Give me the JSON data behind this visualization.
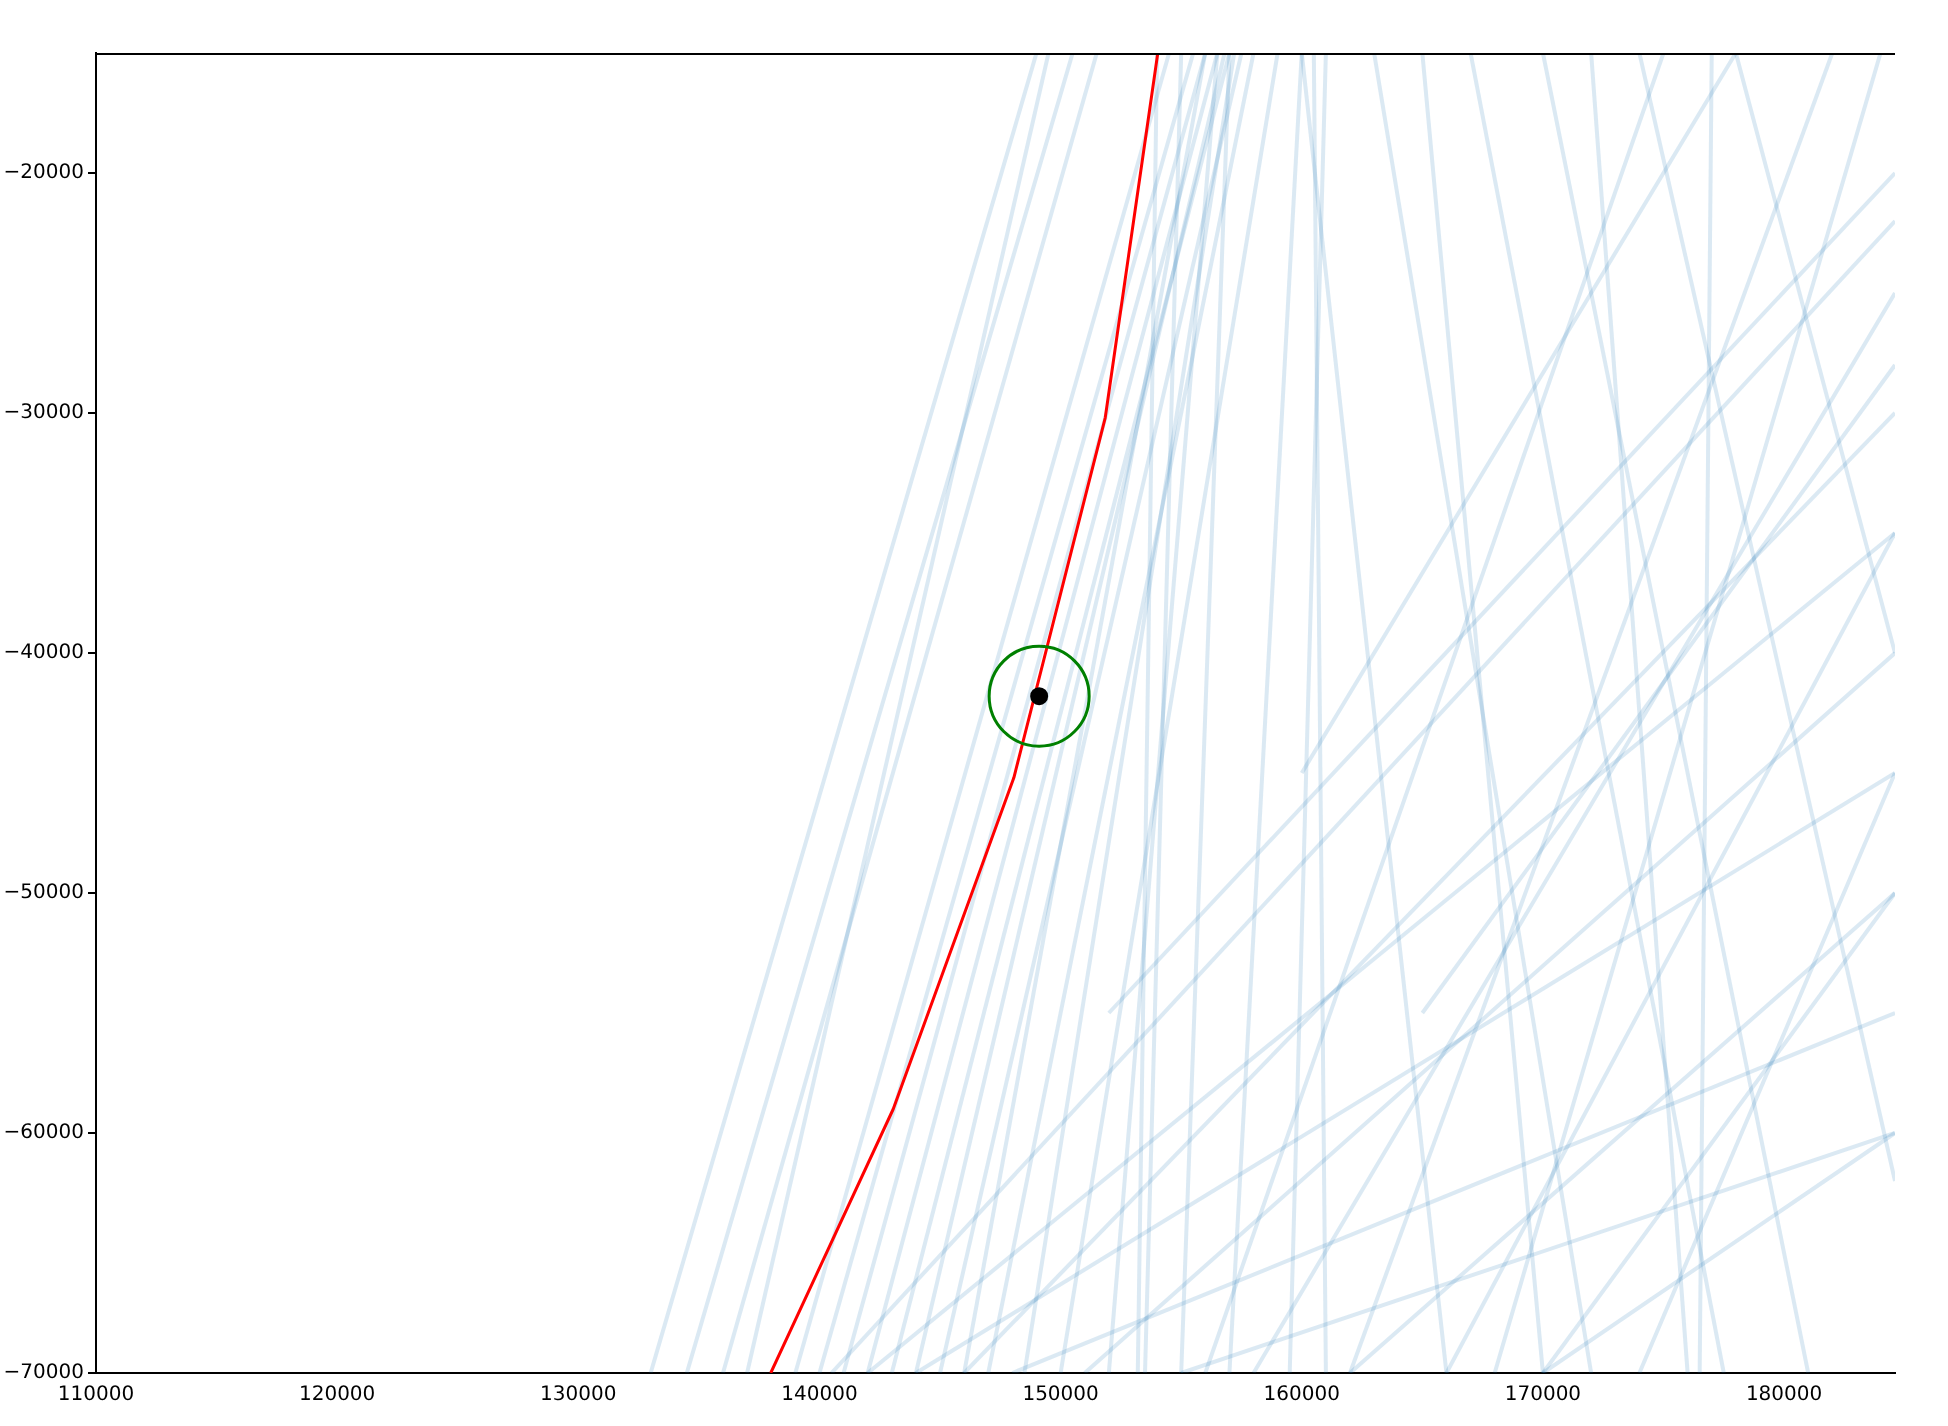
{
  "chart_data": {
    "type": "line",
    "xlim": [
      110000,
      184600
    ],
    "ylim": [
      -70000,
      -15000
    ],
    "xticks": [
      110000,
      120000,
      130000,
      140000,
      150000,
      160000,
      170000,
      180000
    ],
    "yticks": [
      {
        "value": -70000,
        "label": "−70000"
      },
      {
        "value": -60000,
        "label": "−60000"
      },
      {
        "value": -50000,
        "label": "−50000"
      },
      {
        "value": -40000,
        "label": "−40000"
      },
      {
        "value": -30000,
        "label": "−30000"
      },
      {
        "value": -20000,
        "label": "−20000"
      }
    ],
    "grid": false,
    "legend": false,
    "marker": "none",
    "line_style": "solid",
    "series": [
      {
        "color": "#1f77b4",
        "x": [
          133000,
          149000
        ],
        "values": [
          -70000,
          -15000
        ]
      },
      {
        "color": "#1f77b4",
        "x": [
          134500,
          150500
        ],
        "values": [
          -70000,
          -15000
        ]
      },
      {
        "color": "#1f77b4",
        "x": [
          136000,
          151500
        ],
        "values": [
          -70000,
          -15000
        ]
      },
      {
        "color": "#1f77b4",
        "x": [
          137000,
          149500
        ],
        "values": [
          -70000,
          -15000
        ]
      },
      {
        "color": "#1f77b4",
        "x": [
          139000,
          154500
        ],
        "values": [
          -70000,
          -15000
        ]
      },
      {
        "color": "#1f77b4",
        "x": [
          140000,
          155500
        ],
        "values": [
          -70000,
          -15000
        ]
      },
      {
        "color": "#1f77b4",
        "x": [
          141000,
          156000
        ],
        "values": [
          -70000,
          -15000
        ]
      },
      {
        "color": "#1f77b4",
        "x": [
          142000,
          156500
        ],
        "values": [
          -70000,
          -15000
        ]
      },
      {
        "color": "#1f77b4",
        "x": [
          143000,
          157000
        ],
        "values": [
          -70000,
          -15000
        ]
      },
      {
        "color": "#1f77b4",
        "x": [
          144000,
          156800
        ],
        "values": [
          -70000,
          -15000
        ]
      },
      {
        "color": "#1f77b4",
        "x": [
          145000,
          157500
        ],
        "values": [
          -70000,
          -15000
        ]
      },
      {
        "color": "#1f77b4",
        "x": [
          146000,
          156000
        ],
        "values": [
          -70000,
          -15000
        ]
      },
      {
        "color": "#1f77b4",
        "x": [
          147000,
          158000
        ],
        "values": [
          -70000,
          -15000
        ]
      },
      {
        "color": "#1f77b4",
        "x": [
          148500,
          157200
        ],
        "values": [
          -70000,
          -15000
        ]
      },
      {
        "color": "#1f77b4",
        "x": [
          150000,
          159000
        ],
        "values": [
          -70000,
          -15000
        ]
      },
      {
        "color": "#1f77b4",
        "x": [
          152000,
          156500
        ],
        "values": [
          -70000,
          -15000
        ]
      },
      {
        "color": "#1f77b4",
        "x": [
          153500,
          155000
        ],
        "values": [
          -70000,
          -15000
        ]
      },
      {
        "color": "#1f77b4",
        "x": [
          155000,
          157000
        ],
        "values": [
          -70000,
          -15000
        ]
      },
      {
        "color": "#1f77b4",
        "x": [
          157000,
          160000
        ],
        "values": [
          -70000,
          -15000
        ]
      },
      {
        "color": "#1f77b4",
        "x": [
          159500,
          161000
        ],
        "values": [
          -70000,
          -15000
        ]
      },
      {
        "color": "#1f77b4",
        "x": [
          140500,
          184600
        ],
        "values": [
          -70000,
          -22000
        ]
      },
      {
        "color": "#1f77b4",
        "x": [
          142000,
          184600
        ],
        "values": [
          -70000,
          -35000
        ]
      },
      {
        "color": "#1f77b4",
        "x": [
          144000,
          184600
        ],
        "values": [
          -70000,
          -45000
        ]
      },
      {
        "color": "#1f77b4",
        "x": [
          146000,
          184600
        ],
        "values": [
          -70000,
          -30000
        ]
      },
      {
        "color": "#1f77b4",
        "x": [
          148000,
          184600
        ],
        "values": [
          -70000,
          -55000
        ]
      },
      {
        "color": "#1f77b4",
        "x": [
          151000,
          184600
        ],
        "values": [
          -70000,
          -40000
        ]
      },
      {
        "color": "#1f77b4",
        "x": [
          155000,
          184600
        ],
        "values": [
          -70000,
          -60000
        ]
      },
      {
        "color": "#1f77b4",
        "x": [
          158000,
          184600
        ],
        "values": [
          -70000,
          -25000
        ]
      },
      {
        "color": "#1f77b4",
        "x": [
          162000,
          184600
        ],
        "values": [
          -70000,
          -50000
        ]
      },
      {
        "color": "#1f77b4",
        "x": [
          166000,
          184600
        ],
        "values": [
          -70000,
          -35000
        ]
      },
      {
        "color": "#1f77b4",
        "x": [
          170000,
          184600
        ],
        "values": [
          -70000,
          -60000
        ]
      },
      {
        "color": "#1f77b4",
        "x": [
          174000,
          184600
        ],
        "values": [
          -70000,
          -45000
        ]
      },
      {
        "color": "#1f77b4",
        "x": [
          152000,
          184600
        ],
        "values": [
          -55000,
          -20000
        ]
      },
      {
        "color": "#1f77b4",
        "x": [
          160000,
          166000
        ],
        "values": [
          -15000,
          -70000
        ]
      },
      {
        "color": "#1f77b4",
        "x": [
          163000,
          172000
        ],
        "values": [
          -15000,
          -70000
        ]
      },
      {
        "color": "#1f77b4",
        "x": [
          167000,
          177500
        ],
        "values": [
          -15000,
          -70000
        ]
      },
      {
        "color": "#1f77b4",
        "x": [
          170000,
          181000
        ],
        "values": [
          -15000,
          -70000
        ]
      },
      {
        "color": "#1f77b4",
        "x": [
          174000,
          184600
        ],
        "values": [
          -15000,
          -62000
        ]
      },
      {
        "color": "#1f77b4",
        "x": [
          178000,
          184600
        ],
        "values": [
          -15000,
          -40000
        ]
      },
      {
        "color": "#1f77b4",
        "x": [
          165000,
          170000
        ],
        "values": [
          -15000,
          -70000
        ]
      },
      {
        "color": "#1f77b4",
        "x": [
          172000,
          176000
        ],
        "values": [
          -15000,
          -70000
        ]
      },
      {
        "color": "#1f77b4",
        "x": [
          161000,
          160500
        ],
        "values": [
          -70000,
          -15000
        ]
      },
      {
        "color": "#1f77b4",
        "x": [
          153200,
          154000
        ],
        "values": [
          -70000,
          -15000
        ]
      },
      {
        "color": "#1f77b4",
        "x": [
          176500,
          177000
        ],
        "values": [
          -70000,
          -15000
        ]
      },
      {
        "color": "#1f77b4",
        "x": [
          160000,
          178000
        ],
        "values": [
          -45000,
          -15000
        ]
      },
      {
        "color": "#1f77b4",
        "x": [
          165000,
          184600
        ],
        "values": [
          -55000,
          -28000
        ]
      },
      {
        "color": "#1f77b4",
        "x": [
          170000,
          184600
        ],
        "values": [
          -70000,
          -50000
        ]
      },
      {
        "color": "#1f77b4",
        "x": [
          156000,
          175000
        ],
        "values": [
          -70000,
          -15000
        ]
      },
      {
        "color": "#1f77b4",
        "x": [
          162000,
          182000
        ],
        "values": [
          -70000,
          -15000
        ]
      },
      {
        "color": "#1f77b4",
        "x": [
          168000,
          184000
        ],
        "values": [
          -70000,
          -15000
        ]
      },
      {
        "color": "#ff0000",
        "x": [
          137980,
          143060,
          148060,
          151850,
          154030
        ],
        "values": [
          -70000,
          -59000,
          -45200,
          -30200,
          -15000
        ]
      },
      {
        "type": "scatter",
        "marker": "circle",
        "color": "#008000",
        "x": [
          149110
        ],
        "values": [
          -41800
        ]
      },
      {
        "type": "scatter",
        "marker": "circle",
        "color": "#000000",
        "x": [
          149110
        ],
        "values": [
          -41800
        ]
      }
    ]
  }
}
